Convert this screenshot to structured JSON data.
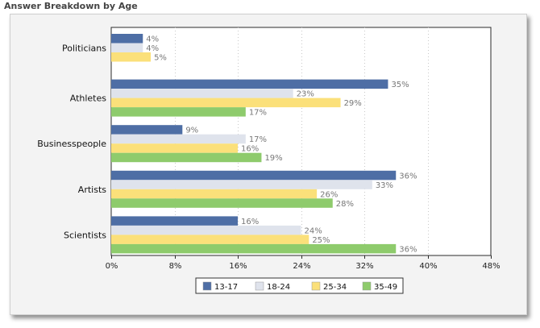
{
  "heading": "Answer Breakdown by Age",
  "chart_data": {
    "type": "bar",
    "orientation": "horizontal",
    "categories": [
      "Politicians",
      "Athletes",
      "Businesspeople",
      "Artists",
      "Scientists"
    ],
    "series": [
      {
        "name": "13-17",
        "color": "#4e6ea5",
        "values": [
          4,
          35,
          9,
          36,
          16
        ],
        "labels": [
          "4%",
          "35%",
          "9%",
          "36%",
          "16%"
        ]
      },
      {
        "name": "18-24",
        "color": "#dfe3ec",
        "values": [
          4,
          23,
          17,
          33,
          24
        ],
        "labels": [
          "4%",
          "23%",
          "17%",
          "33%",
          "24%"
        ]
      },
      {
        "name": "25-34",
        "color": "#fbe07a",
        "values": [
          5,
          29,
          16,
          26,
          25
        ],
        "labels": [
          "5%",
          "29%",
          "16%",
          "26%",
          "25%"
        ]
      },
      {
        "name": "35-49",
        "color": "#8ecb6c",
        "values": [
          0,
          17,
          19,
          28,
          36
        ],
        "labels": [
          "",
          "17%",
          "19%",
          "28%",
          "36%"
        ]
      }
    ],
    "x_ticks": [
      "0%",
      "8%",
      "16%",
      "24%",
      "32%",
      "40%",
      "48%"
    ],
    "xlim": [
      0,
      48
    ],
    "grid": true,
    "legend_position": "bottom"
  }
}
